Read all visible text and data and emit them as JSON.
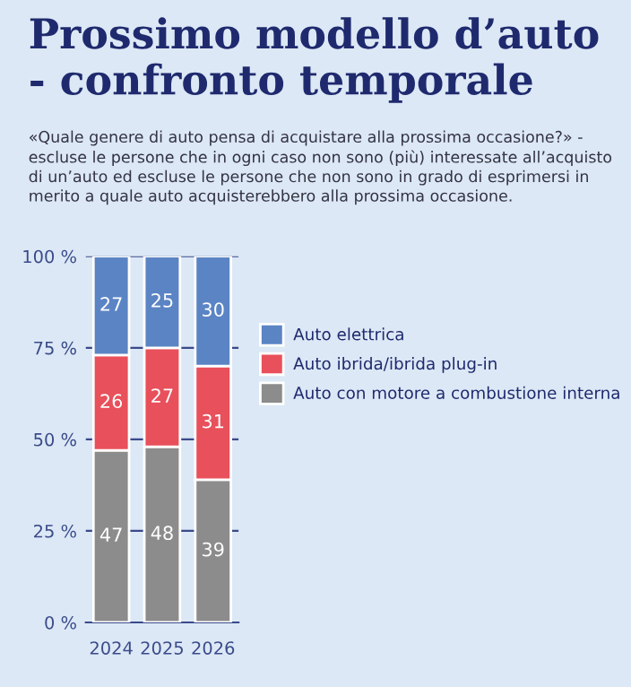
{
  "chart_data": {
    "type": "bar",
    "title": "Prossimo modello d’auto - confronto temporale",
    "subtitle": "«Quale genere di auto pensa di acquistare alla prossima occasione?» - escluse le persone che in ogni caso non sono (più) interessate all’acquisto di un’auto ed escluse le persone che non sono in grado di esprimersi in merito a quale auto acquisterebbero alla prossima occasione.",
    "categories": [
      "2024",
      "2025",
      "2026"
    ],
    "stacked": true,
    "series": [
      {
        "name": "Auto con motore a combustione interna",
        "color": "#8c8c8c",
        "values": [
          47,
          48,
          39
        ]
      },
      {
        "name": "Auto ibrida/ibrida plug-in",
        "color": "#e8505b",
        "values": [
          26,
          27,
          31
        ]
      },
      {
        "name": "Auto elettrica",
        "color": "#5b84c4",
        "values": [
          27,
          25,
          30
        ]
      }
    ],
    "ylim": [
      0,
      100
    ],
    "yticks": [
      {
        "value": 0,
        "label": "0 %"
      },
      {
        "value": 25,
        "label": "25 %"
      },
      {
        "value": 50,
        "label": "50 %"
      },
      {
        "value": 75,
        "label": "75 %"
      },
      {
        "value": 100,
        "label": "100 %"
      }
    ],
    "grid": "y",
    "legend": "right",
    "data_labels": true
  }
}
